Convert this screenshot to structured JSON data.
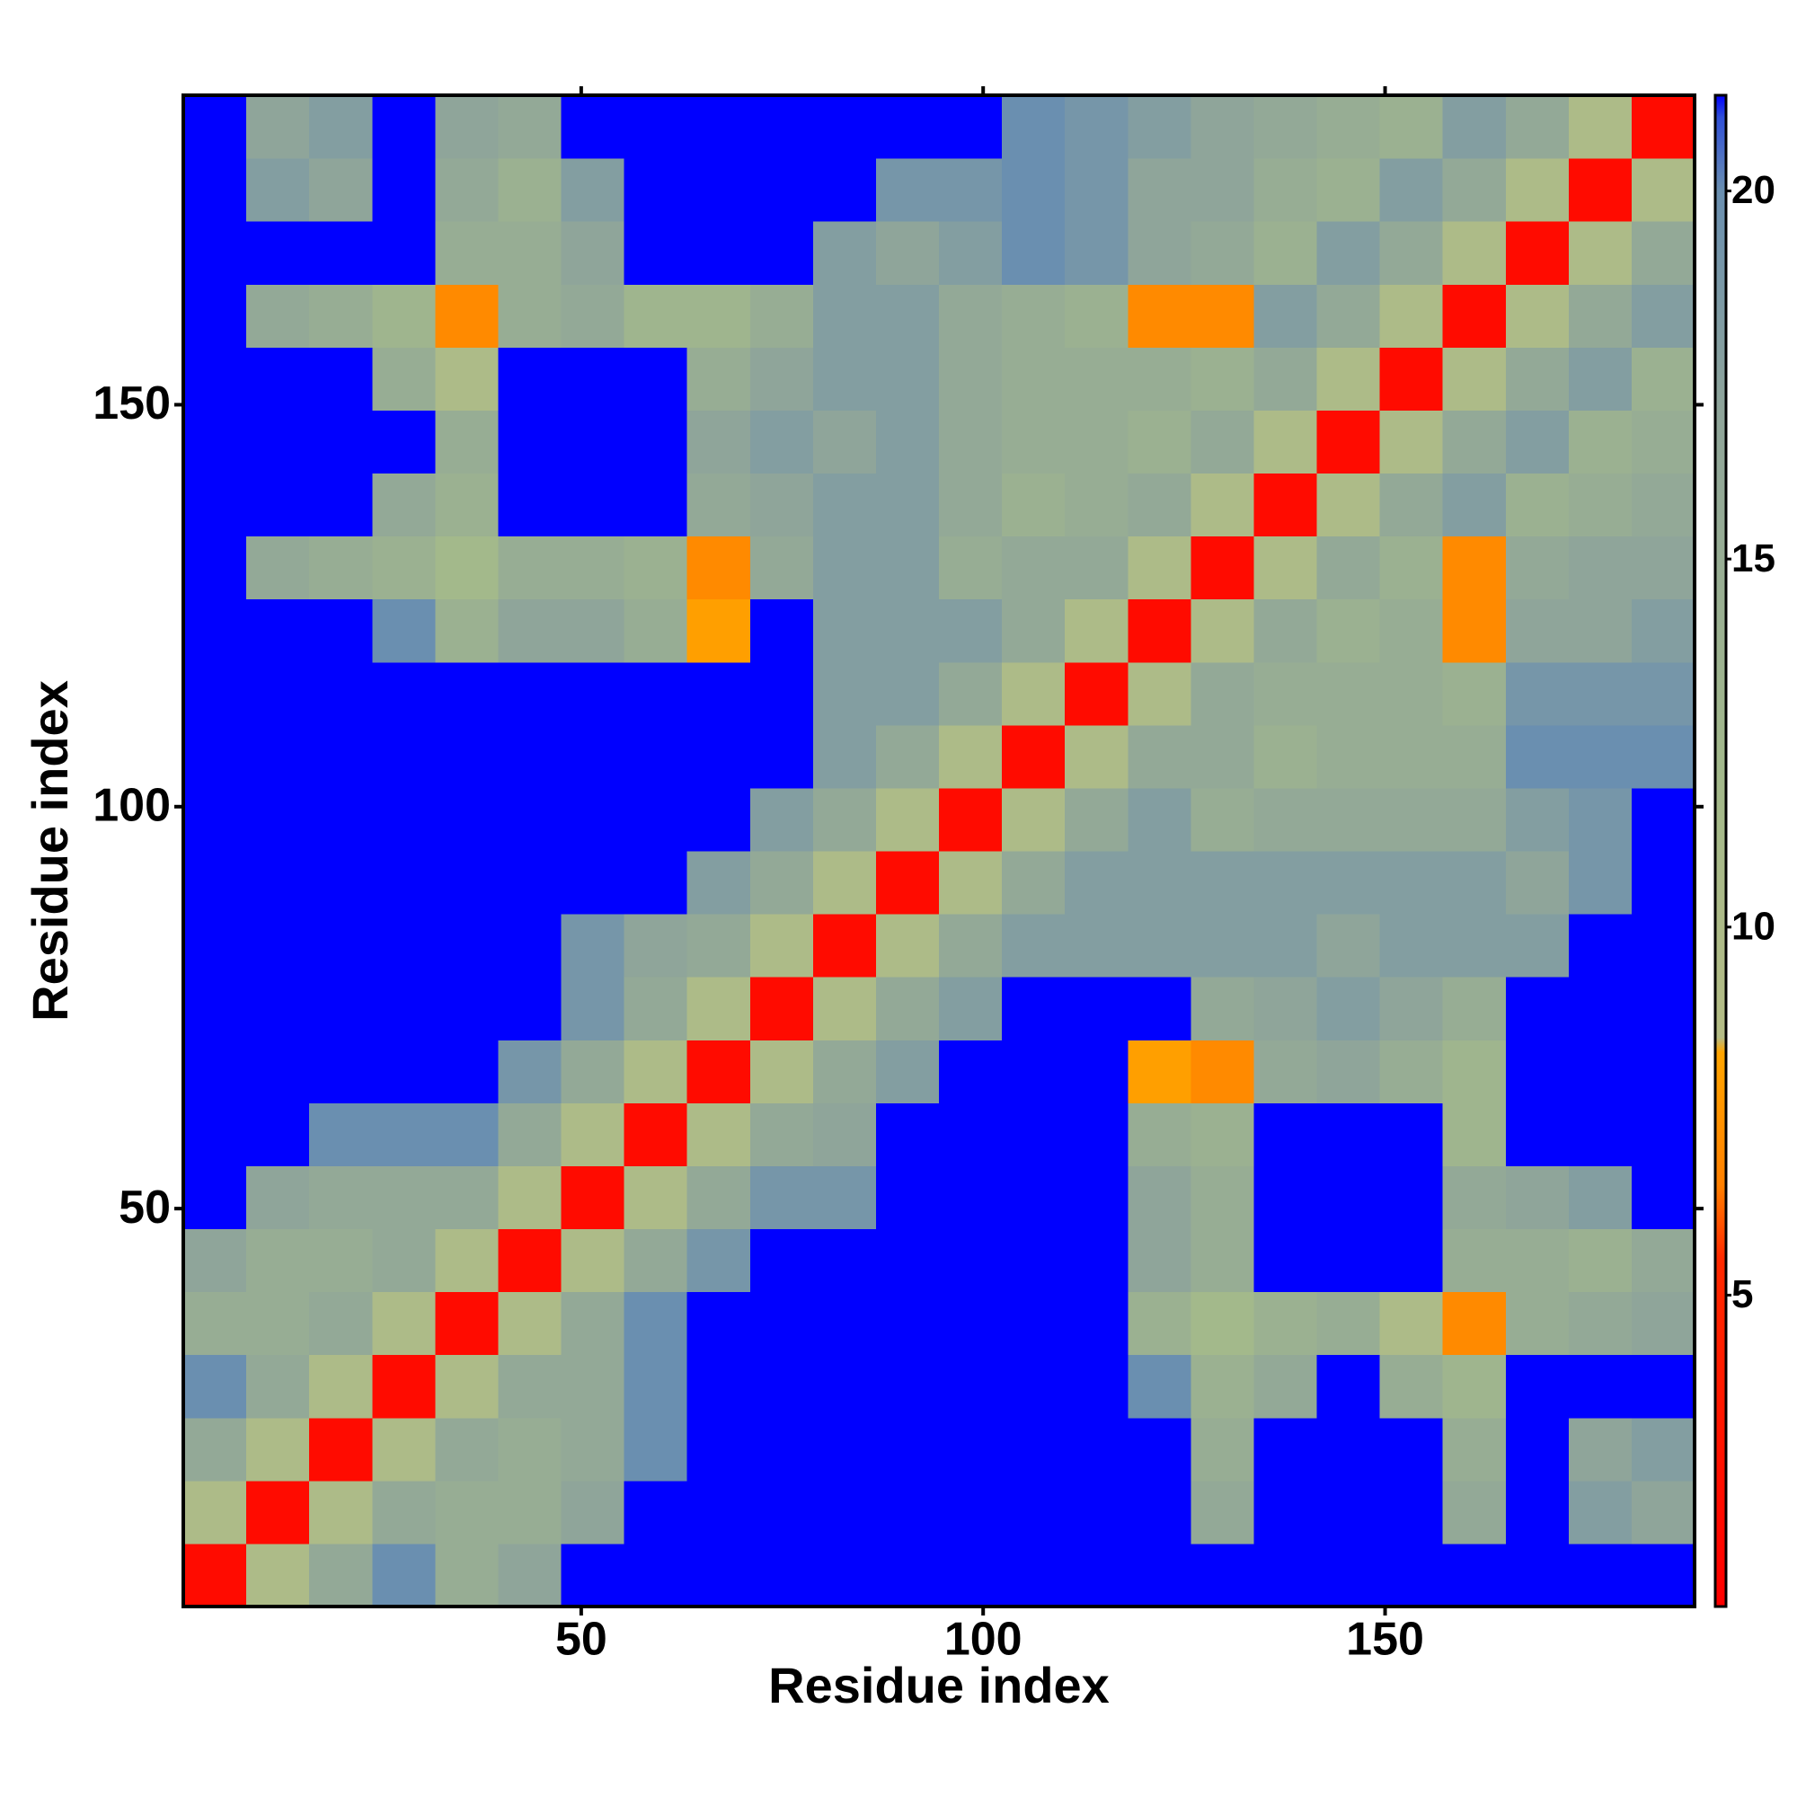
{
  "chart_data": {
    "type": "heatmap",
    "xlabel": "Residue index",
    "ylabel": "Residue index",
    "bins": [
      0.5,
      8.33,
      16.17,
      24,
      31.83,
      39.67,
      47.5,
      55.33,
      63.17,
      71,
      78.83,
      86.67,
      94.5,
      102.33,
      110.17,
      118,
      125.83,
      133.67,
      141.5,
      149.33,
      157.17,
      165,
      172.83,
      180.67,
      188.5
    ],
    "z": [
      [
        2,
        10,
        16,
        20,
        15,
        17,
        25,
        25,
        25,
        25,
        25,
        25,
        25,
        25,
        25,
        25,
        25,
        25,
        25,
        25,
        25,
        25,
        25,
        25
      ],
      [
        10,
        2,
        10,
        16,
        15,
        15,
        17,
        25,
        25,
        25,
        25,
        25,
        25,
        25,
        25,
        25,
        16,
        25,
        25,
        25,
        16,
        25,
        18,
        17
      ],
      [
        16,
        10,
        2,
        10,
        16,
        15,
        16,
        20,
        25,
        25,
        25,
        25,
        25,
        25,
        25,
        25,
        15,
        25,
        25,
        25,
        15,
        25,
        17,
        18
      ],
      [
        20,
        16,
        10,
        2,
        10,
        16,
        16,
        20,
        25,
        25,
        25,
        25,
        25,
        25,
        25,
        20,
        14,
        16,
        25,
        15,
        13,
        25,
        25,
        25
      ],
      [
        15,
        15,
        16,
        10,
        2,
        10,
        16,
        20,
        25,
        25,
        25,
        25,
        25,
        25,
        25,
        14,
        12,
        14,
        15,
        10,
        7,
        15,
        16,
        17
      ],
      [
        17,
        15,
        15,
        16,
        10,
        2,
        10,
        16,
        19,
        25,
        25,
        25,
        25,
        25,
        25,
        17,
        15,
        25,
        25,
        25,
        15,
        15,
        14,
        16
      ],
      [
        25,
        17,
        16,
        16,
        16,
        10,
        2,
        10,
        16,
        19,
        19,
        25,
        25,
        25,
        25,
        17,
        15,
        25,
        25,
        25,
        16,
        17,
        18,
        25
      ],
      [
        25,
        25,
        20,
        20,
        20,
        16,
        10,
        2,
        10,
        16,
        17,
        25,
        25,
        25,
        25,
        15,
        14,
        25,
        25,
        25,
        13,
        25,
        25,
        25
      ],
      [
        25,
        25,
        25,
        25,
        25,
        19,
        16,
        10,
        2,
        10,
        16,
        18,
        25,
        25,
        25,
        8,
        7,
        16,
        17,
        15,
        13,
        25,
        25,
        25
      ],
      [
        25,
        25,
        25,
        25,
        25,
        25,
        19,
        16,
        10,
        2,
        10,
        16,
        18,
        25,
        25,
        25,
        16,
        17,
        18,
        17,
        15,
        25,
        25,
        25
      ],
      [
        25,
        25,
        25,
        25,
        25,
        25,
        19,
        17,
        16,
        10,
        2,
        10,
        16,
        18,
        18,
        18,
        18,
        18,
        17,
        18,
        18,
        18,
        25,
        25
      ],
      [
        25,
        25,
        25,
        25,
        25,
        25,
        25,
        25,
        18,
        16,
        10,
        2,
        10,
        16,
        18,
        18,
        18,
        18,
        18,
        18,
        18,
        17,
        19,
        25
      ],
      [
        25,
        25,
        25,
        25,
        25,
        25,
        25,
        25,
        25,
        18,
        16,
        10,
        2,
        10,
        16,
        18,
        15,
        16,
        16,
        16,
        16,
        18,
        19,
        25
      ],
      [
        25,
        25,
        25,
        25,
        25,
        25,
        25,
        25,
        25,
        25,
        18,
        16,
        10,
        2,
        10,
        16,
        16,
        14,
        15,
        15,
        15,
        20,
        20,
        20
      ],
      [
        25,
        25,
        25,
        25,
        25,
        25,
        25,
        25,
        25,
        25,
        18,
        18,
        16,
        10,
        2,
        10,
        16,
        15,
        15,
        15,
        14,
        19,
        19,
        19
      ],
      [
        25,
        25,
        25,
        20,
        14,
        17,
        17,
        15,
        8,
        25,
        18,
        18,
        18,
        16,
        10,
        2,
        10,
        16,
        14,
        15,
        7,
        17,
        17,
        18
      ],
      [
        25,
        16,
        15,
        14,
        12,
        15,
        15,
        14,
        7,
        16,
        18,
        18,
        15,
        16,
        16,
        10,
        2,
        10,
        16,
        14,
        7,
        16,
        17,
        17
      ],
      [
        25,
        25,
        25,
        16,
        14,
        25,
        25,
        25,
        16,
        17,
        18,
        18,
        16,
        14,
        15,
        16,
        10,
        2,
        10,
        16,
        18,
        14,
        15,
        16
      ],
      [
        25,
        25,
        25,
        25,
        15,
        25,
        25,
        25,
        17,
        18,
        17,
        18,
        16,
        15,
        15,
        14,
        16,
        10,
        2,
        10,
        16,
        18,
        14,
        15
      ],
      [
        25,
        25,
        25,
        15,
        10,
        25,
        25,
        25,
        15,
        17,
        18,
        18,
        16,
        15,
        15,
        15,
        14,
        16,
        10,
        2,
        10,
        16,
        18,
        14
      ],
      [
        25,
        16,
        15,
        13,
        7,
        15,
        16,
        13,
        13,
        15,
        18,
        18,
        16,
        15,
        14,
        7,
        7,
        18,
        16,
        10,
        2,
        10,
        16,
        18
      ],
      [
        25,
        25,
        25,
        25,
        15,
        15,
        17,
        25,
        25,
        25,
        18,
        17,
        18,
        20,
        19,
        17,
        16,
        14,
        18,
        16,
        10,
        2,
        10,
        16
      ],
      [
        25,
        18,
        17,
        25,
        16,
        14,
        18,
        25,
        25,
        25,
        25,
        19,
        19,
        20,
        19,
        17,
        17,
        15,
        14,
        18,
        16,
        10,
        2,
        10
      ],
      [
        25,
        17,
        18,
        25,
        17,
        16,
        25,
        25,
        25,
        25,
        25,
        25,
        25,
        20,
        19,
        18,
        17,
        16,
        15,
        14,
        18,
        16,
        10,
        2
      ]
    ],
    "xlim": [
      0.5,
      188.5
    ],
    "ylim": [
      0.5,
      188.5
    ],
    "xticks": [
      50,
      100,
      150
    ],
    "yticks": [
      50,
      100,
      150
    ],
    "colorscale": [
      [
        0.77,
        "#ff0000"
      ],
      [
        5.5,
        "#ff2a00"
      ],
      [
        6.5,
        "#ff8000"
      ],
      [
        8.3,
        "#ffa500"
      ],
      [
        8.5,
        "#b4bc86"
      ],
      [
        12,
        "#a3b98b"
      ],
      [
        17,
        "#8fa59a"
      ],
      [
        20,
        "#6a8fb0"
      ],
      [
        21,
        "#3050d8"
      ],
      [
        21.3,
        "#0000ff"
      ]
    ],
    "zlim": [
      0.77,
      21.3
    ],
    "zticks": [
      5,
      10,
      15,
      20
    ]
  }
}
